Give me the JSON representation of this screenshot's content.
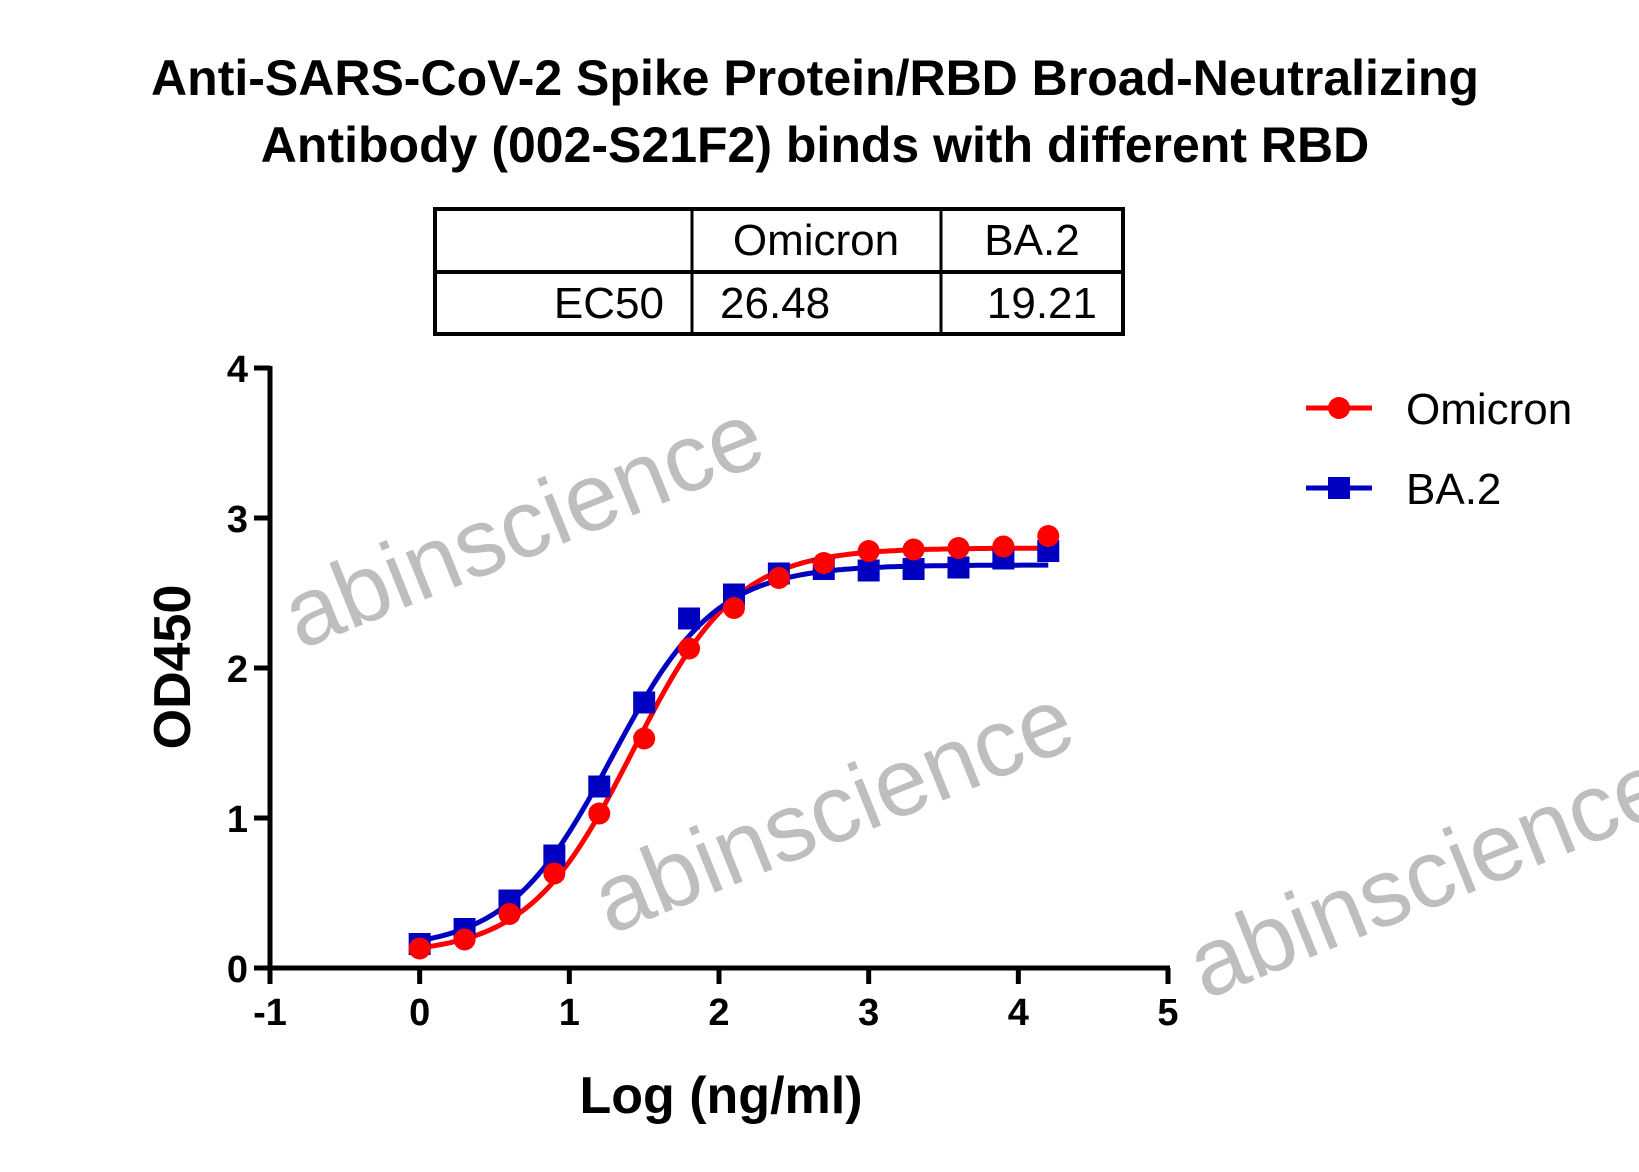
{
  "chart_data": {
    "type": "line",
    "title": [
      "Anti-SARS-CoV-2 Spike Protein/RBD Broad-Neutralizing",
      "Antibody (002-S21F2) binds with different RBD"
    ],
    "xlabel": "Log (ng/ml)",
    "ylabel": "OD450",
    "xlim": [
      -1,
      5
    ],
    "ylim": [
      0,
      4
    ],
    "xticks": [
      "-1",
      "0",
      "1",
      "2",
      "3",
      "4",
      "5"
    ],
    "yticks": [
      "0",
      "1",
      "2",
      "3",
      "4"
    ],
    "grid": false,
    "legend_position": "top-right",
    "x": [
      0,
      0.3,
      0.6,
      0.9,
      1.2,
      1.5,
      1.8,
      2.1,
      2.4,
      2.7,
      3.0,
      3.3,
      3.6,
      3.9,
      4.2
    ],
    "series": [
      {
        "name": "Omicron",
        "color": "#ff0000",
        "marker": "circle",
        "values": [
          0.13,
          0.19,
          0.36,
          0.63,
          1.03,
          1.53,
          2.13,
          2.4,
          2.6,
          2.7,
          2.78,
          2.79,
          2.8,
          2.81,
          2.88
        ]
      },
      {
        "name": "BA.2",
        "color": "#0000c0",
        "marker": "square",
        "values": [
          0.16,
          0.26,
          0.45,
          0.75,
          1.21,
          1.77,
          2.33,
          2.49,
          2.63,
          2.66,
          2.65,
          2.66,
          2.67,
          2.73,
          2.78
        ]
      }
    ],
    "table": {
      "headers": [
        "",
        "Omicron",
        "BA.2"
      ],
      "rows": [
        [
          "EC50",
          "26.48",
          "19.21"
        ]
      ]
    }
  },
  "watermark": "abinscience"
}
